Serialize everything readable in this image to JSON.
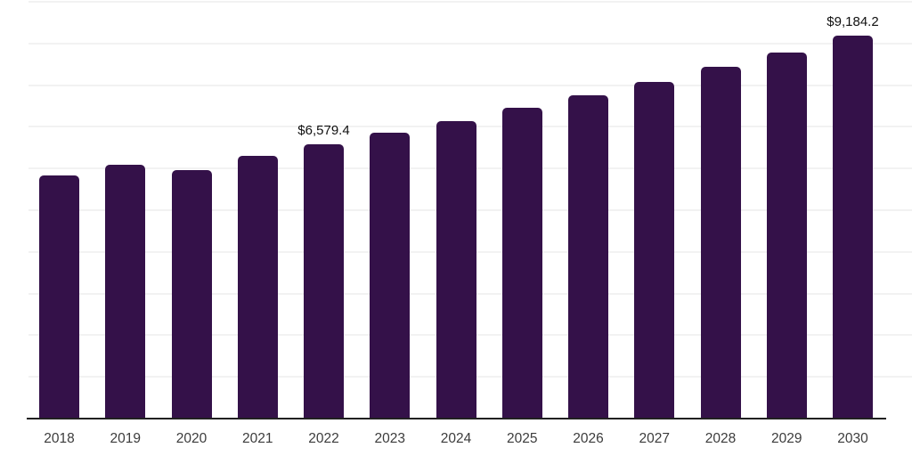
{
  "chart_data": {
    "type": "bar",
    "title": "",
    "xlabel": "",
    "ylabel": "",
    "categories": [
      "2018",
      "2019",
      "2020",
      "2021",
      "2022",
      "2023",
      "2024",
      "2025",
      "2026",
      "2027",
      "2028",
      "2029",
      "2030"
    ],
    "values": [
      5840,
      6085,
      5955,
      6300,
      6579.4,
      6860,
      7140,
      7450,
      7760,
      8070,
      8440,
      8780,
      9184.2
    ],
    "point_labels": [
      "",
      "",
      "",
      "",
      "$6,579.4",
      "",
      "",
      "",
      "",
      "",
      "",
      "",
      "$9,184.2"
    ],
    "ylim": [
      0,
      10000
    ],
    "grid_step": 1000,
    "grid": "horizontal",
    "legend_position": "none",
    "y_tick_labels_visible": false
  },
  "style": {
    "bar_color": "#341149",
    "grid_color": "#f2f2f2",
    "axis_color": "#212121",
    "value_label_color": "#101010",
    "tick_label_color": "#3c3c3c",
    "background_color": "#ffffff"
  }
}
